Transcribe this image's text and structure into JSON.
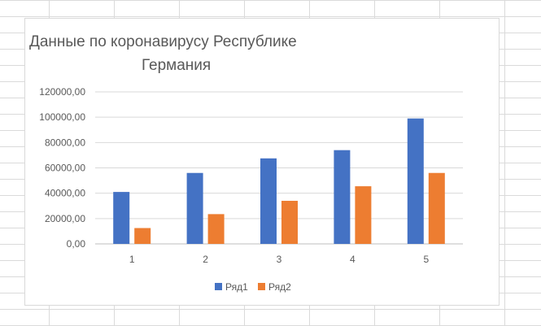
{
  "chart_data": {
    "type": "bar",
    "title_lines": [
      "Данные  по коронавирусу  Республике",
      "Германия"
    ],
    "categories": [
      "1",
      "2",
      "3",
      "4",
      "5"
    ],
    "series": [
      {
        "name": "Ряд1",
        "color": "#4472C4",
        "values": [
          41000,
          56000,
          67500,
          74000,
          99000
        ]
      },
      {
        "name": "Ряд2",
        "color": "#ED7D31",
        "values": [
          12500,
          23500,
          34000,
          45500,
          56000
        ]
      }
    ],
    "ylim": [
      0,
      120000
    ],
    "yticks": [
      0,
      20000,
      40000,
      60000,
      80000,
      100000,
      120000
    ],
    "ytick_labels": [
      "0,00",
      "20000,00",
      "40000,00",
      "60000,00",
      "80000,00",
      "100000,00",
      "120000,00"
    ],
    "grid": true,
    "legend_position": "bottom"
  }
}
